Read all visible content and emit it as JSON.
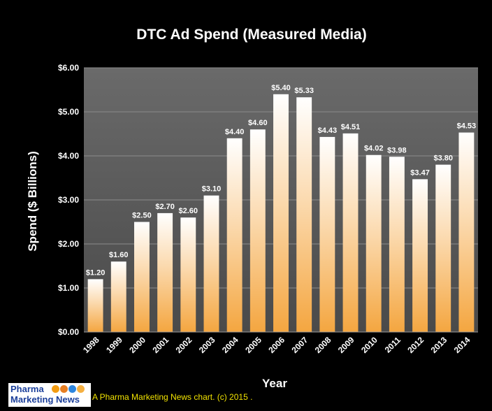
{
  "chart_data": {
    "type": "bar",
    "title": "DTC Ad Spend (Measured Media)",
    "xlabel": "Year",
    "ylabel": "Spend ($ Billions)",
    "categories": [
      "1998",
      "1999",
      "2000",
      "2001",
      "2002",
      "2003",
      "2004",
      "2005",
      "2006",
      "2007",
      "2008",
      "2009",
      "2010",
      "2011",
      "2012",
      "2013",
      "2014"
    ],
    "values": [
      1.2,
      1.6,
      2.5,
      2.7,
      2.6,
      3.1,
      4.4,
      4.6,
      5.4,
      5.33,
      4.43,
      4.51,
      4.02,
      3.98,
      3.47,
      3.8,
      4.53
    ],
    "data_labels": [
      "$1.20",
      "$1.60",
      "$2.50",
      "$2.70",
      "$2.60",
      "$3.10",
      "$4.40",
      "$4.60",
      "$5.40",
      "$5.33",
      "$4.43",
      "$4.51",
      "$4.02",
      "$3.98",
      "$3.47",
      "$3.80",
      "$4.53"
    ],
    "ylim": [
      0,
      6
    ],
    "yticks": [
      "$0.00",
      "$1.00",
      "$2.00",
      "$3.00",
      "$4.00",
      "$5.00",
      "$6.00"
    ],
    "grid": true,
    "colors": {
      "page_background": "#000000",
      "plot_background": "#5a5a5a",
      "bar_top": "#ffffff",
      "bar_bottom": "#f4a640",
      "text": "#ffffff",
      "credit_text": "#f2e300"
    }
  },
  "footer": {
    "credit": "A Pharma Marketing News chart. (c) 2015 .",
    "logo_line1": "Pharma",
    "logo_line2": "Marketing News",
    "logo_dot_colors": [
      "#f39c12",
      "#e67e22",
      "#2e86de",
      "#f5b041"
    ]
  }
}
